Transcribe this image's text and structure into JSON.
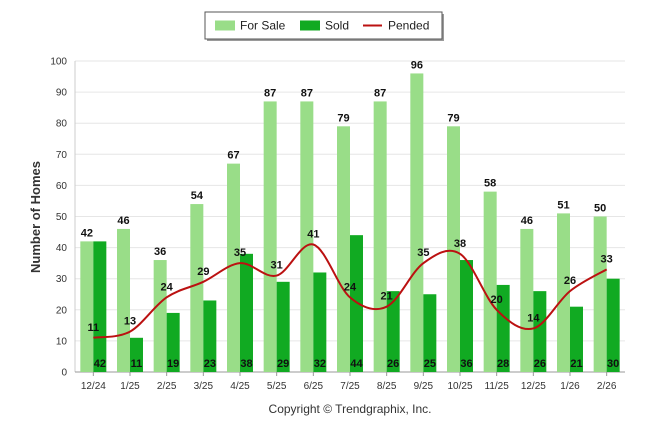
{
  "chart_data": {
    "type": "bar",
    "categories": [
      "12/24",
      "1/25",
      "2/25",
      "3/25",
      "4/25",
      "5/25",
      "6/25",
      "7/25",
      "8/25",
      "9/25",
      "10/25",
      "11/25",
      "12/25",
      "1/26",
      "2/26"
    ],
    "series": [
      {
        "name": "For Sale",
        "type": "bar",
        "color": "#99dd88",
        "values": [
          42,
          46,
          36,
          54,
          67,
          87,
          87,
          79,
          87,
          96,
          79,
          58,
          46,
          51,
          50
        ]
      },
      {
        "name": "Sold",
        "type": "bar",
        "color": "#11aa22",
        "values": [
          42,
          11,
          19,
          23,
          38,
          29,
          32,
          44,
          26,
          25,
          36,
          28,
          26,
          21,
          30
        ]
      },
      {
        "name": "Pended",
        "type": "line",
        "color": "#bb1111",
        "values": [
          11,
          13,
          24,
          29,
          35,
          31,
          41,
          24,
          21,
          35,
          38,
          20,
          14,
          26,
          33
        ]
      }
    ],
    "ylabel": "Number of Homes",
    "xlabel": "",
    "ylim": [
      0,
      100
    ],
    "yticks": [
      0,
      10,
      20,
      30,
      40,
      50,
      60,
      70,
      80,
      90,
      100
    ],
    "grid": true,
    "legend": "top-center"
  },
  "footer": {
    "copyright": "Copyright © Trendgraphix, Inc."
  }
}
